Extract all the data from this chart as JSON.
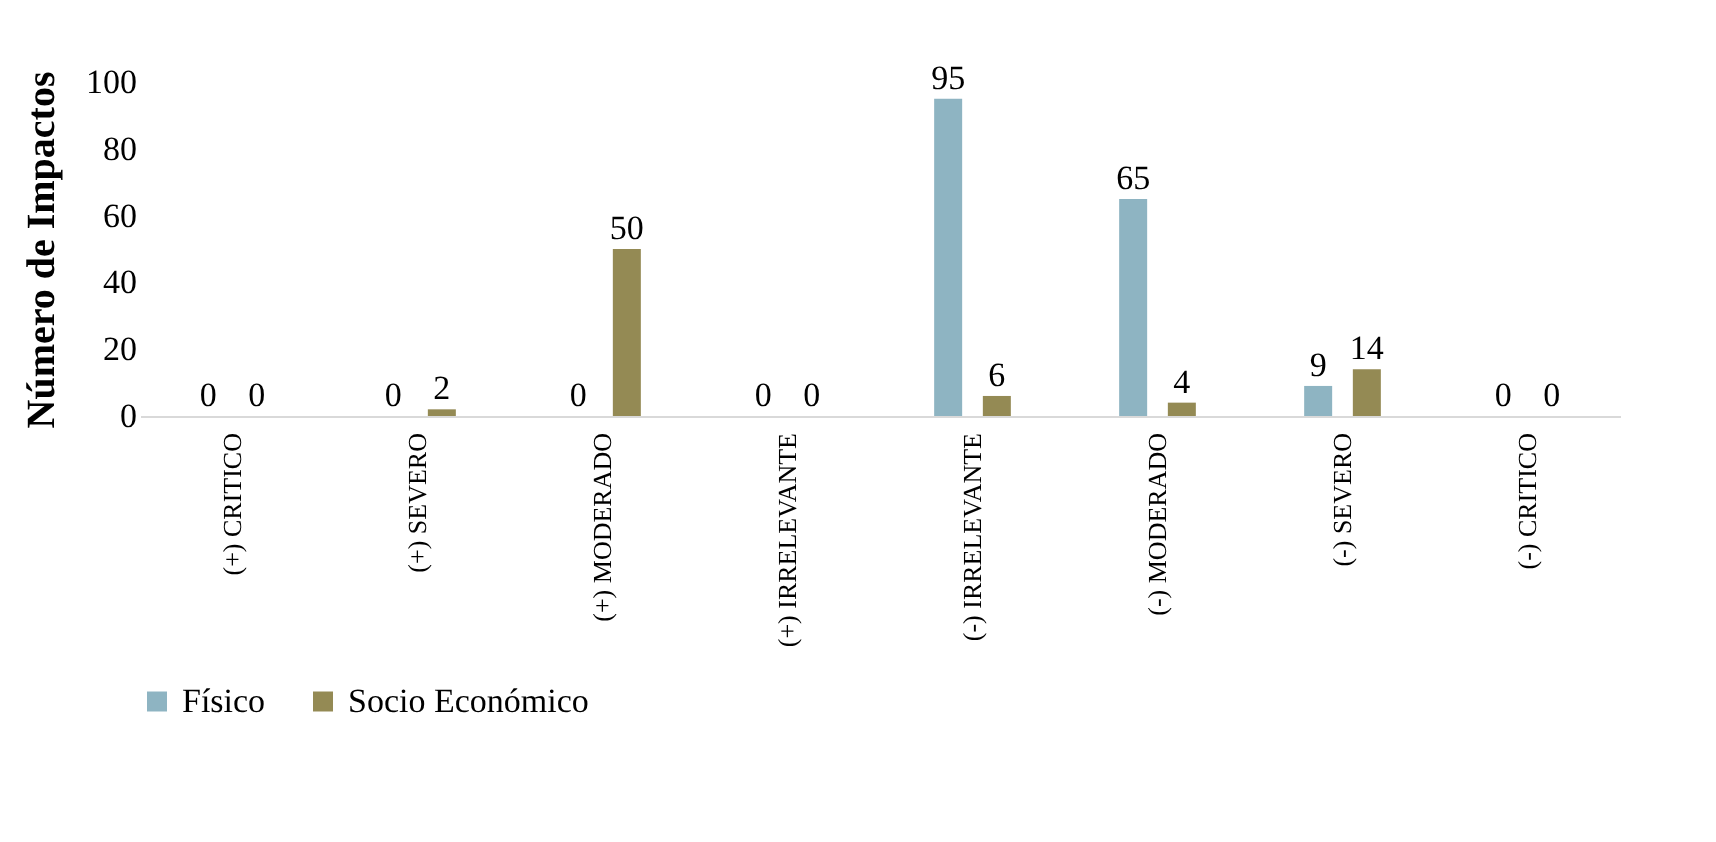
{
  "chart_data": {
    "type": "bar",
    "ylabel": "Número de Impactos",
    "categories": [
      "(+) CRITICO",
      "(+) SEVERO",
      "(+) MODERADO",
      "(+) IRRELEVANTE",
      "(-) IRRELEVANTE",
      "(-) MODERADO",
      "(-) SEVERO",
      "(-) CRITICO"
    ],
    "series": [
      {
        "name": "Físico",
        "color": "#8eb4c2",
        "values": [
          0,
          0,
          0,
          0,
          95,
          65,
          9,
          0
        ]
      },
      {
        "name": "Socio Económico",
        "color": "#948a54",
        "values": [
          0,
          2,
          50,
          0,
          6,
          4,
          14,
          0
        ]
      }
    ],
    "ylim": [
      0,
      100
    ],
    "yticks": [
      0,
      20,
      40,
      60,
      80,
      100
    ],
    "grid": false,
    "data_labels": true,
    "legend": "bottom"
  }
}
